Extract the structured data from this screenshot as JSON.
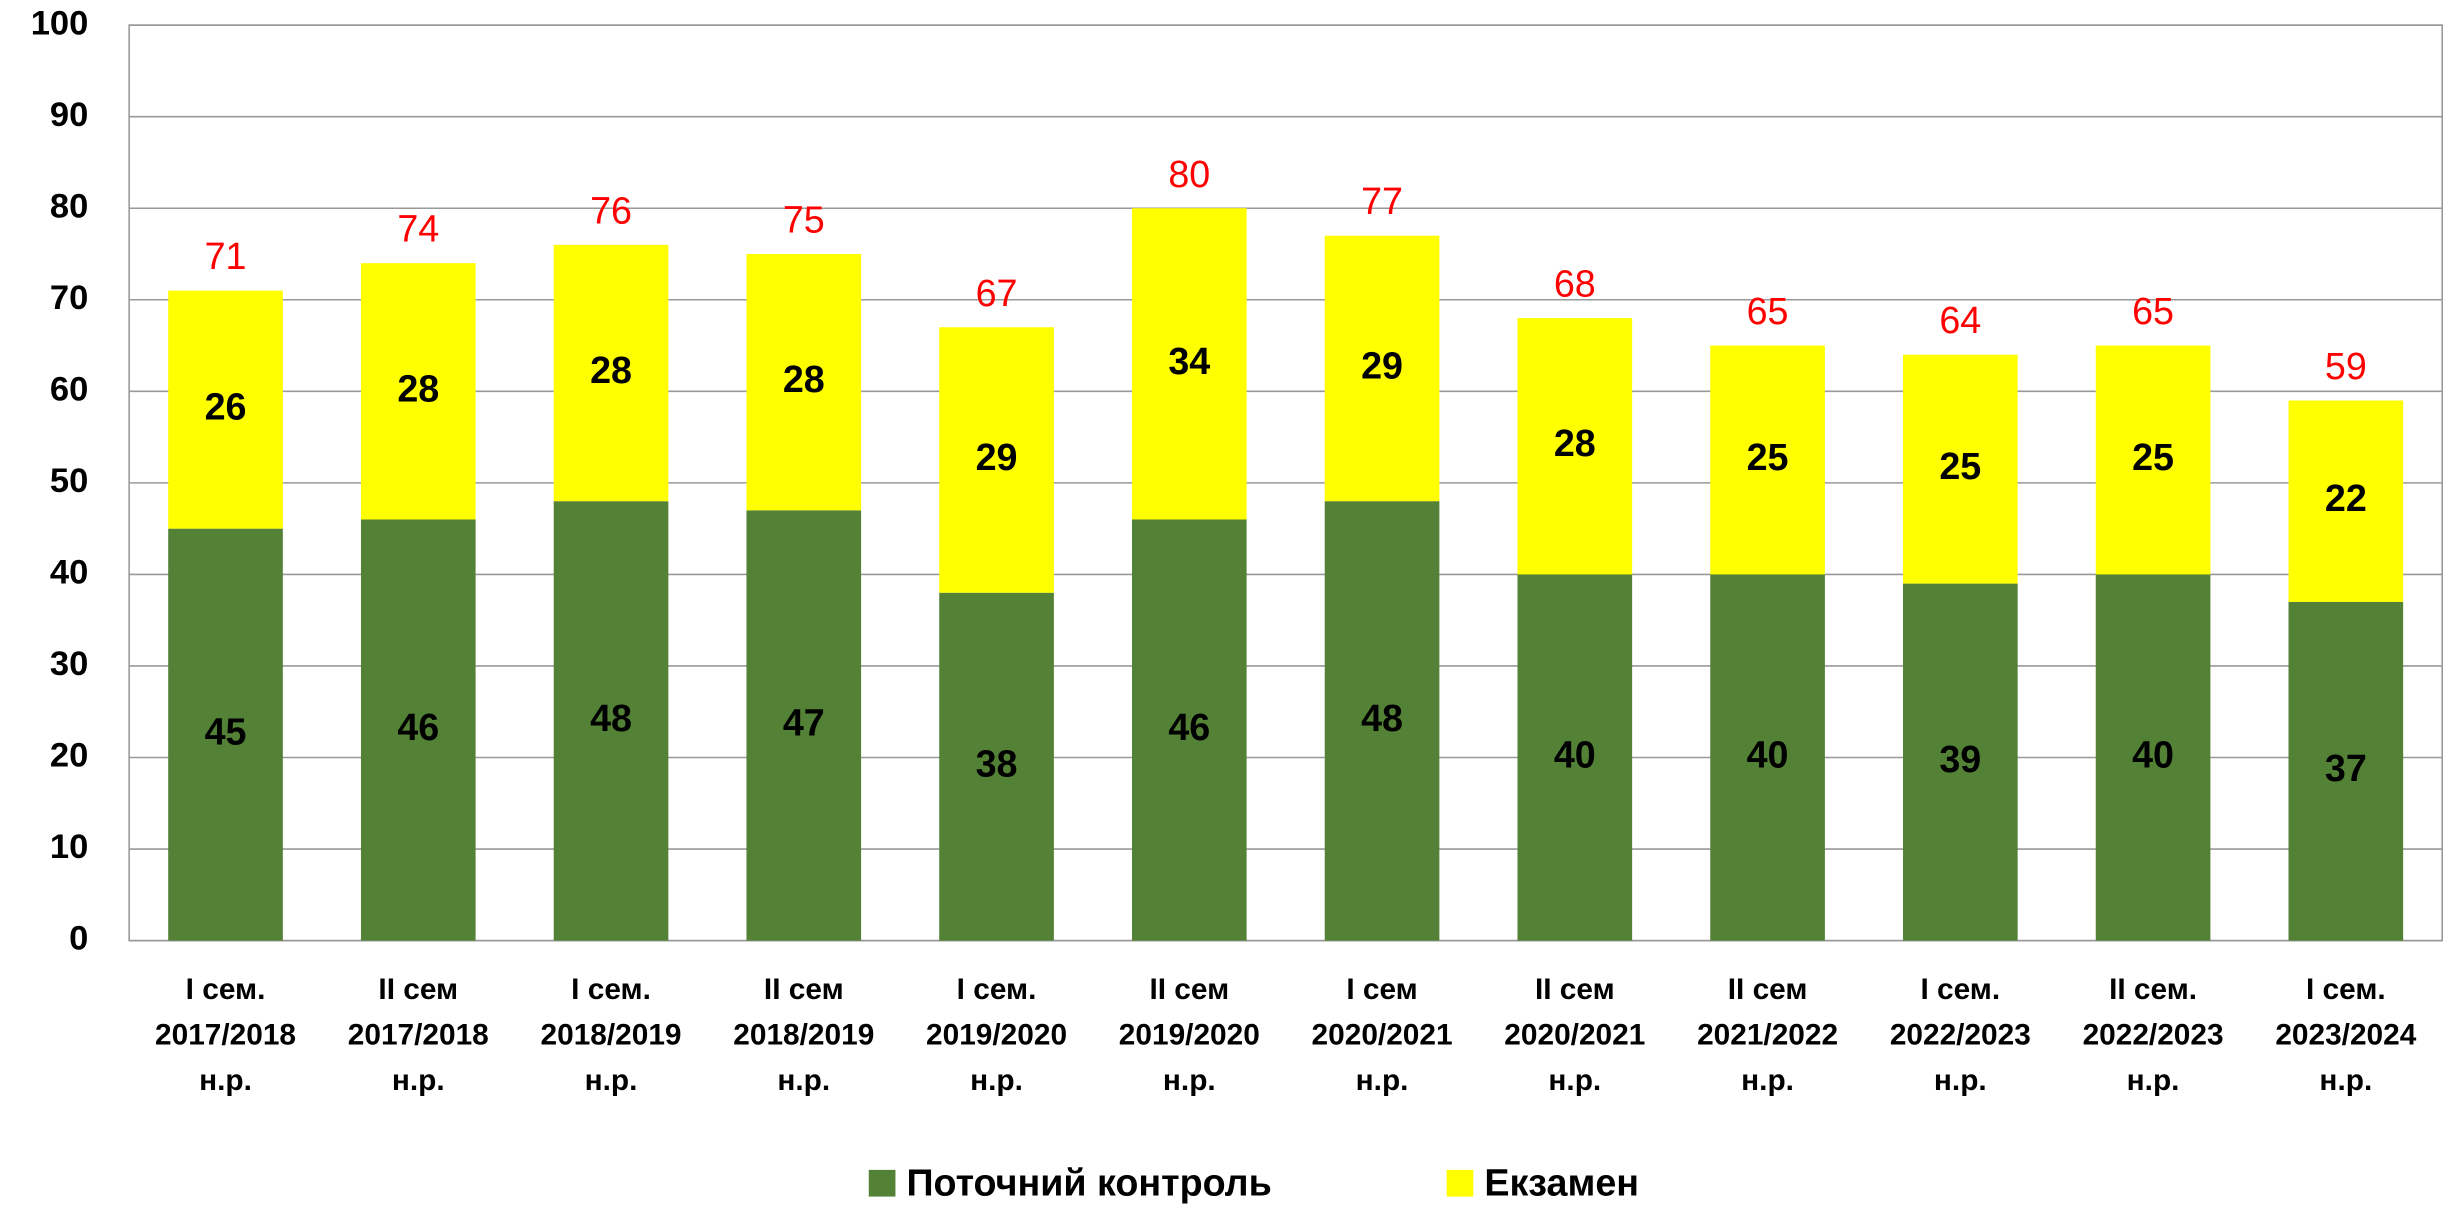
{
  "chart_data": {
    "type": "stacked_bar",
    "categories": [
      [
        "І сем.",
        "2017/2018",
        "н.р."
      ],
      [
        "ІІ сем",
        "2017/2018",
        "н.р."
      ],
      [
        "І сем.",
        "2018/2019",
        "н.р."
      ],
      [
        "ІІ сем",
        "2018/2019",
        "н.р."
      ],
      [
        "І сем.",
        "2019/2020",
        "н.р."
      ],
      [
        "ІІ сем",
        "2019/2020",
        "н.р."
      ],
      [
        "І сем",
        "2020/2021",
        "н.р."
      ],
      [
        "ІІ сем",
        "2020/2021",
        "н.р."
      ],
      [
        "ІІ сем",
        "2021/2022",
        "н.р."
      ],
      [
        "І сем.",
        "2022/2023",
        "н.р."
      ],
      [
        "ІІ сем.",
        "2022/2023",
        "н.р."
      ],
      [
        "І сем.",
        "2023/2024",
        "н.р."
      ]
    ],
    "series": [
      {
        "name": "Поточний контроль",
        "color": "#538135",
        "values": [
          45,
          46,
          48,
          47,
          38,
          46,
          48,
          40,
          40,
          39,
          40,
          37
        ]
      },
      {
        "name": "Екзамен",
        "color": "#ffff00",
        "values": [
          26,
          28,
          28,
          28,
          29,
          34,
          29,
          28,
          25,
          25,
          25,
          22
        ]
      }
    ],
    "totals": [
      71,
      74,
      76,
      75,
      67,
      80,
      77,
      68,
      65,
      64,
      65,
      59
    ],
    "totals_color": "#ff0000",
    "ylim": [
      0,
      100
    ],
    "yticks": [
      0,
      10,
      20,
      30,
      40,
      50,
      60,
      70,
      80,
      90,
      100
    ],
    "grid": true,
    "legend": "bottom"
  }
}
